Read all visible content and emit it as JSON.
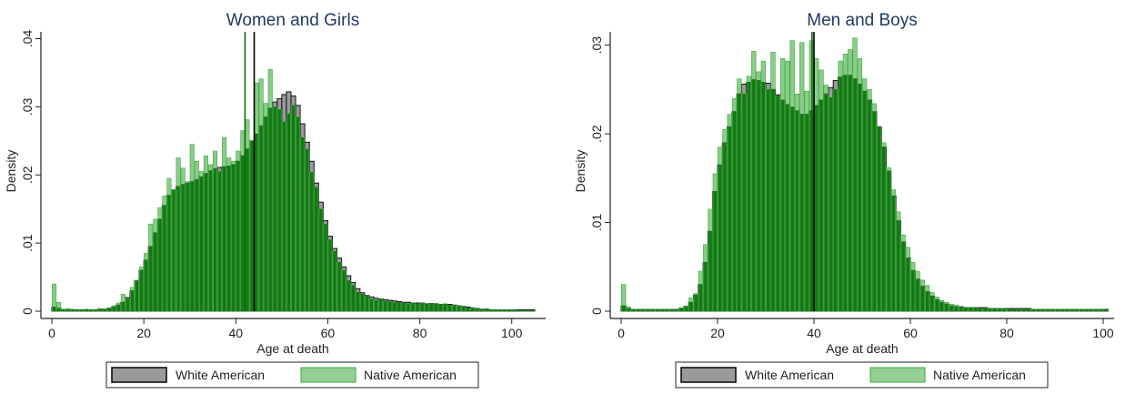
{
  "colors": {
    "white_american_fill": "#9a9a9a",
    "native_american_fill": "#3da93d",
    "overlap_fill": "#137a13",
    "bar_outline": "#111111",
    "title_color": "#1f3a60",
    "axis_color": "#222222"
  },
  "legend": {
    "white_label": "White American",
    "native_label": "Native American"
  },
  "chart_data": [
    {
      "type": "bar",
      "title": "Women and Girls",
      "xlabel": "Age at death",
      "ylabel": "Density",
      "xlim": [
        0,
        105
      ],
      "ylim": [
        0,
        0.041
      ],
      "xticks": [
        0,
        20,
        40,
        60,
        80,
        100
      ],
      "xtick_labels": [
        "0",
        "20",
        "40",
        "60",
        "80",
        "100"
      ],
      "yticks": [
        0,
        0.01,
        0.02,
        0.03,
        0.04
      ],
      "ytick_labels": [
        "0",
        ".01",
        ".02",
        ".03",
        ".04"
      ],
      "bin_width": 1,
      "legend_position": "bottom",
      "grid": false,
      "mean_lines": [
        {
          "series": "Native American",
          "x": 42
        },
        {
          "series": "White American",
          "x": 44
        }
      ],
      "series": [
        {
          "name": "White American",
          "bin_start": 0,
          "values": [
            0.0006,
            0.0004,
            0.0002,
            0.0002,
            0.0002,
            0.0002,
            0.0002,
            0.0002,
            0.0002,
            0.0002,
            0.0003,
            0.0003,
            0.0004,
            0.0006,
            0.0009,
            0.0013,
            0.002,
            0.003,
            0.0045,
            0.006,
            0.0075,
            0.0095,
            0.0115,
            0.0135,
            0.0155,
            0.017,
            0.0178,
            0.0183,
            0.0186,
            0.0188,
            0.019,
            0.0193,
            0.0197,
            0.0202,
            0.0206,
            0.0209,
            0.0211,
            0.0212,
            0.0213,
            0.0215,
            0.022,
            0.0228,
            0.0238,
            0.025,
            0.026,
            0.0272,
            0.0285,
            0.0298,
            0.0307,
            0.0312,
            0.0318,
            0.0322,
            0.0316,
            0.0302,
            0.0275,
            0.0248,
            0.022,
            0.0188,
            0.016,
            0.0133,
            0.011,
            0.0092,
            0.0078,
            0.0065,
            0.0052,
            0.0042,
            0.0033,
            0.0027,
            0.0023,
            0.0021,
            0.0019,
            0.0018,
            0.0017,
            0.0016,
            0.0015,
            0.0014,
            0.0013,
            0.0013,
            0.0012,
            0.0012,
            0.0012,
            0.0011,
            0.0011,
            0.0011,
            0.001,
            0.001,
            0.001,
            0.0009,
            0.0008,
            0.0007,
            0.0006,
            0.0005,
            0.0004,
            0.0003,
            0.0003,
            0.0002,
            0.0002,
            0.0002,
            0.0002,
            0.0002,
            0.0002,
            0.0002,
            0.0002,
            0.0002,
            0.0002
          ]
        },
        {
          "name": "Native American",
          "bin_start": 0,
          "values": [
            0.004,
            0.0013,
            0.0003,
            0.0004,
            0.0003,
            0.0002,
            0.0002,
            0.0003,
            0.0002,
            0.0002,
            0.0002,
            0.0003,
            0.0005,
            0.0008,
            0.0012,
            0.0025,
            0.0018,
            0.0035,
            0.0045,
            0.0065,
            0.0085,
            0.0128,
            0.0135,
            0.0152,
            0.0169,
            0.0195,
            0.0178,
            0.0225,
            0.021,
            0.019,
            0.0245,
            0.022,
            0.0205,
            0.0228,
            0.0215,
            0.0235,
            0.0205,
            0.0255,
            0.0225,
            0.022,
            0.0235,
            0.0265,
            0.0281,
            0.025,
            0.0335,
            0.0341,
            0.0305,
            0.0355,
            0.03,
            0.0296,
            0.0278,
            0.029,
            0.0302,
            0.0285,
            0.0255,
            0.0238,
            0.0204,
            0.0182,
            0.015,
            0.0128,
            0.0105,
            0.0088,
            0.0072,
            0.006,
            0.0045,
            0.0038,
            0.0028,
            0.0025,
            0.0022,
            0.0018,
            0.0016,
            0.0018,
            0.0015,
            0.0014,
            0.0013,
            0.0013,
            0.0012,
            0.0011,
            0.0012,
            0.0011,
            0.0012,
            0.0011,
            0.001,
            0.0011,
            0.001,
            0.0011,
            0.0009,
            0.0009,
            0.0008,
            0.0007,
            0.0005,
            0.0005,
            0.0004,
            0.0003,
            0.0002,
            0.0002,
            0.0002,
            0.0002,
            0.0002,
            0.0002,
            0.0002,
            0.0001,
            0.0001,
            0.0001,
            0.0001
          ]
        }
      ]
    },
    {
      "type": "bar",
      "title": "Men and Boys",
      "xlabel": "Age at death",
      "ylabel": "Density",
      "xlim": [
        0,
        100
      ],
      "ylim": [
        0,
        0.0315
      ],
      "xticks": [
        0,
        20,
        40,
        60,
        80,
        100
      ],
      "xtick_labels": [
        "0",
        "20",
        "40",
        "60",
        "80",
        "100"
      ],
      "yticks": [
        0,
        0.01,
        0.02,
        0.03
      ],
      "ytick_labels": [
        "0",
        ".01",
        ".02",
        ".03"
      ],
      "bin_width": 1,
      "legend_position": "bottom",
      "grid": false,
      "mean_lines": [
        {
          "series": "Native American",
          "x": 39.6
        },
        {
          "series": "White American",
          "x": 40.0
        }
      ],
      "series": [
        {
          "name": "White American",
          "bin_start": 0,
          "values": [
            0.0006,
            0.0003,
            0.0002,
            0.0002,
            0.0002,
            0.0002,
            0.0002,
            0.0002,
            0.0002,
            0.0002,
            0.0002,
            0.0002,
            0.0003,
            0.0005,
            0.001,
            0.0018,
            0.003,
            0.0055,
            0.009,
            0.0135,
            0.0165,
            0.019,
            0.0208,
            0.0225,
            0.0245,
            0.0256,
            0.0258,
            0.0261,
            0.026,
            0.0258,
            0.0257,
            0.025,
            0.0244,
            0.0238,
            0.0233,
            0.023,
            0.0226,
            0.0222,
            0.0222,
            0.0226,
            0.0232,
            0.0238,
            0.0245,
            0.0252,
            0.026,
            0.0264,
            0.0266,
            0.0266,
            0.0262,
            0.0256,
            0.0248,
            0.0238,
            0.0225,
            0.0208,
            0.0185,
            0.0158,
            0.013,
            0.0102,
            0.0078,
            0.006,
            0.0046,
            0.0036,
            0.0028,
            0.0022,
            0.0017,
            0.0013,
            0.001,
            0.0008,
            0.0006,
            0.0005,
            0.0005,
            0.0004,
            0.0004,
            0.0004,
            0.0004,
            0.0004,
            0.0003,
            0.0003,
            0.0003,
            0.0003,
            0.0003,
            0.0003,
            0.0003,
            0.0003,
            0.0003,
            0.0002,
            0.0002,
            0.0002,
            0.0002,
            0.0002,
            0.0002,
            0.0002,
            0.0002,
            0.0002,
            0.0002,
            0.0002,
            0.0002,
            0.0002,
            0.0002,
            0.0002,
            0.0002
          ]
        },
        {
          "name": "Native American",
          "bin_start": 0,
          "values": [
            0.003,
            0.0005,
            0.0002,
            0.0002,
            0.0002,
            0.0002,
            0.0002,
            0.0002,
            0.0002,
            0.0002,
            0.0002,
            0.0002,
            0.0004,
            0.0006,
            0.0015,
            0.002,
            0.0045,
            0.0075,
            0.0115,
            0.0155,
            0.0185,
            0.0205,
            0.0222,
            0.024,
            0.0262,
            0.0245,
            0.0265,
            0.0293,
            0.027,
            0.0282,
            0.025,
            0.0292,
            0.0243,
            0.0285,
            0.0282,
            0.0305,
            0.0245,
            0.0303,
            0.0248,
            0.0305,
            0.0285,
            0.0272,
            0.0255,
            0.0241,
            0.025,
            0.0282,
            0.029,
            0.0295,
            0.0308,
            0.0285,
            0.0262,
            0.025,
            0.0234,
            0.0208,
            0.019,
            0.0162,
            0.0137,
            0.0112,
            0.0086,
            0.0072,
            0.0055,
            0.0045,
            0.0035,
            0.0029,
            0.0021,
            0.0016,
            0.0012,
            0.001,
            0.0008,
            0.0007,
            0.0005,
            0.0004,
            0.0004,
            0.0004,
            0.0003,
            0.0003,
            0.0003,
            0.0003,
            0.0003,
            0.0003,
            0.0002,
            0.0002,
            0.0002,
            0.0002,
            0.0002,
            0.0002,
            0.0002,
            0.0002,
            0.0002,
            0.0002,
            0.0002,
            0.0002,
            0.0002,
            0.0002,
            0.0002,
            0.0002,
            0.0002,
            0.0002,
            0.0002,
            0.0002,
            0.0001
          ]
        }
      ]
    }
  ]
}
